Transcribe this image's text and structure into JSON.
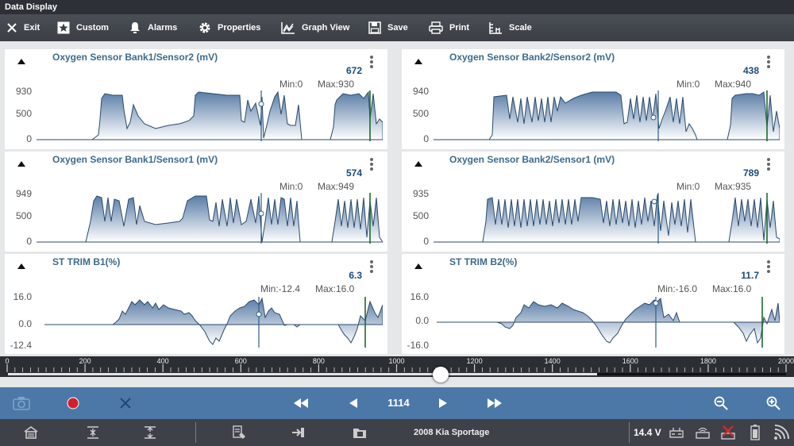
{
  "window": {
    "title": "Data  Display"
  },
  "toolbar": [
    {
      "label": "Exit",
      "icon": "close-icon"
    },
    {
      "label": "Custom",
      "icon": "star-icon"
    },
    {
      "label": "Alarms",
      "icon": "bell-icon"
    },
    {
      "label": "Properties",
      "icon": "gear-icon"
    },
    {
      "label": "Graph View",
      "icon": "graph-icon"
    },
    {
      "label": "Save",
      "icon": "save-icon"
    },
    {
      "label": "Print",
      "icon": "print-icon"
    },
    {
      "label": "Scale",
      "icon": "scale-icon"
    }
  ],
  "panels": [
    {
      "title": "Oxygen Sensor Bank1/Sensor2 (mV)",
      "value": "672",
      "min": "Min:0",
      "max": "Max:930",
      "yticks": [
        "930",
        "500",
        "0"
      ]
    },
    {
      "title": "Oxygen Sensor Bank2/Sensor2 (mV)",
      "value": "438",
      "min": "Min:0",
      "max": "Max:940",
      "yticks": [
        "940",
        "500",
        "0"
      ]
    },
    {
      "title": "Oxygen Sensor Bank1/Sensor1 (mV)",
      "value": "574",
      "min": "Min:0",
      "max": "Max:949",
      "yticks": [
        "949",
        "500",
        "0"
      ]
    },
    {
      "title": "Oxygen Sensor Bank2/Sensor1 (mV)",
      "value": "789",
      "min": "Min:0",
      "max": "Max:935",
      "yticks": [
        "935",
        "500",
        "0"
      ]
    },
    {
      "title": "ST TRIM B1(%)",
      "value": "6.3",
      "min": "Min:-12.4",
      "max": "Max:16.0",
      "yticks": [
        "16.0",
        "0.0",
        "-12.4"
      ]
    },
    {
      "title": "ST TRIM B2(%)",
      "value": "11.7",
      "min": "Min:-16.0",
      "max": "Max:16.0",
      "yticks": [
        "16.0",
        "0.0",
        "-16.0"
      ]
    }
  ],
  "timeline": {
    "labels": [
      "0",
      "200",
      "400",
      "600",
      "800",
      "1000",
      "1200",
      "1400",
      "1600",
      "1800",
      "2000"
    ],
    "min": 0,
    "max": 2000,
    "position": 1114
  },
  "playback": {
    "frame": "1114",
    "buttons": [
      "camera-icon",
      "record-icon",
      "clear-icon",
      "rewind-icon",
      "step-back-icon",
      "step-forward-icon",
      "fast-forward-icon",
      "zoom-out-icon",
      "zoom-in-icon"
    ],
    "colors": {
      "bar": "#4c78a8",
      "record": "#d0202a"
    }
  },
  "statusbar": {
    "vehicle": "2008 Kia Sportage",
    "voltage": "14.4 V",
    "icons": [
      "home-icon",
      "collapse-icon",
      "expand-icon",
      "vehicle-info-icon",
      "connect-icon",
      "folder-icon",
      "battery-connector-icon",
      "vci-icon",
      "vci-error-icon",
      "battery-icon",
      "wifi-icon"
    ]
  }
}
